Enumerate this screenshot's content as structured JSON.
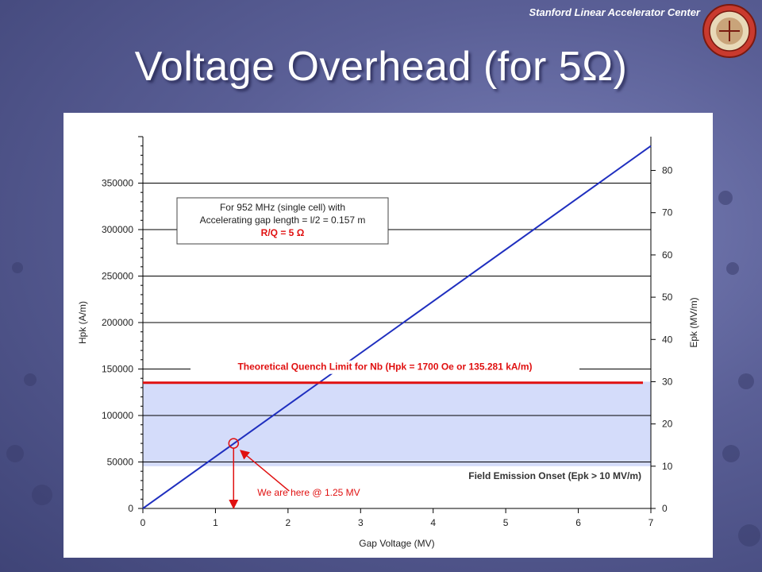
{
  "slide": {
    "organization": "Stanford Linear Accelerator Center",
    "title": "Voltage Overhead (for 5Ω)"
  },
  "colors": {
    "line": "#1f2fbf",
    "quench": "#e01010",
    "band": "#d4dcfa",
    "annotation": "#e01010"
  },
  "chart_data": {
    "type": "line",
    "xlabel": "Gap Voltage (MV)",
    "ylabel": "Hpk (A/m)",
    "y2label": "Epk (MV/m)",
    "xlim": [
      0,
      7
    ],
    "ylim": [
      0,
      400000
    ],
    "y2lim": [
      0,
      88
    ],
    "xticks": [
      "0",
      "1",
      "2",
      "3",
      "4",
      "5",
      "6",
      "7"
    ],
    "yticks": [
      "0",
      "50000",
      "100000",
      "150000",
      "200000",
      "250000",
      "300000",
      "350000"
    ],
    "y2ticks": [
      "0",
      "10",
      "20",
      "30",
      "40",
      "50",
      "60",
      "70",
      "80"
    ],
    "series": [
      {
        "x": [
          0,
          7
        ],
        "y": [
          0,
          390000
        ]
      }
    ],
    "quench_limit": {
      "y": 135281,
      "label": "Theoretical Quench Limit for Nb (Hpk = 1700 Oe or 135.281 kA/m)"
    },
    "field_emission": {
      "epk_from": 10,
      "epk_to": 30,
      "label": "Field Emission Onset (Epk > 10 MV/m)"
    },
    "marker": {
      "x": 1.25,
      "y": 70000,
      "label": "We are here @ 1.25 MV"
    },
    "info_box": {
      "line1": "For 952 MHz (single cell) with",
      "line2": "Accelerating gap length = l/2 = 0.157 m",
      "line3": "R/Q = 5 Ω"
    },
    "grid": true
  }
}
